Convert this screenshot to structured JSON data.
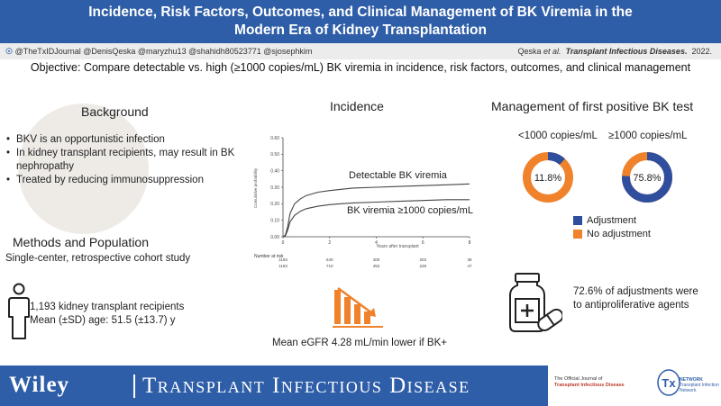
{
  "title": {
    "line1": "Incidence, Risk Factors, Outcomes, and Clinical Management of BK Viremia in the",
    "line2": "Modern Era of Kidney Transplantation"
  },
  "social": {
    "handles": "@TheTxIDJournal @DenisQeska @maryzhu13 @shahidh80523771 @sjosephkim",
    "citation_authors": "Qeska ",
    "citation_etal": "et al.",
    "citation_journal": "Transplant Infectious Diseases.",
    "citation_year": "2022."
  },
  "objective": "Objective: Compare detectable vs. high (≥1000 copies/mL) BK viremia in incidence, risk factors, outcomes, and clinical management",
  "background": {
    "heading": "Background",
    "items": [
      "BKV is an opportunistic infection",
      "In kidney transplant recipients, may result in BK nephropathy",
      "Treated by reducing immunosuppression"
    ]
  },
  "methods": {
    "heading": "Methods and Population",
    "description": "Single-center, retrospective cohort study",
    "stat1": "1,193 kidney transplant recipients",
    "stat2": "Mean (±SD) age:  51.5 (±13.7) y",
    "icon": "person-icon"
  },
  "incidence": {
    "heading": "Incidence",
    "egfr_text": "Mean eGFR 4.28 mL/min lower if BK+",
    "egfr_icon": "declining-bar-chart-icon"
  },
  "chart_data": {
    "type": "line",
    "title": "",
    "xlabel": "Years after transplant",
    "ylabel": "Cumulative probability",
    "xlim": [
      0,
      8
    ],
    "ylim": [
      0,
      0.6
    ],
    "x_ticks": [
      "0",
      "2",
      "4",
      "6",
      "8"
    ],
    "y_ticks": [
      "0.00",
      "0.10",
      "0.20",
      "0.30",
      "0.40",
      "0.50",
      "0.60"
    ],
    "series": [
      {
        "name": "Detectable BK viremia",
        "color": "#444444",
        "x": [
          0,
          0.1,
          0.2,
          0.3,
          0.5,
          0.75,
          1,
          1.5,
          2,
          3,
          4,
          5,
          6,
          7,
          8
        ],
        "y": [
          0,
          0.01,
          0.06,
          0.14,
          0.2,
          0.23,
          0.25,
          0.27,
          0.28,
          0.295,
          0.3,
          0.305,
          0.31,
          0.315,
          0.32
        ]
      },
      {
        "name": "BK viremia ≥1000 copies/mL",
        "color": "#444444",
        "x": [
          0,
          0.1,
          0.2,
          0.3,
          0.5,
          0.75,
          1,
          1.5,
          2,
          3,
          4,
          5,
          6,
          7,
          8
        ],
        "y": [
          0,
          0.005,
          0.04,
          0.09,
          0.13,
          0.155,
          0.17,
          0.185,
          0.195,
          0.205,
          0.21,
          0.215,
          0.22,
          0.225,
          0.225
        ]
      }
    ],
    "number_at_risk": {
      "label": "Number at risk",
      "rows": [
        [
          "1193",
          "640",
          "400",
          "203",
          "38"
        ],
        [
          "1193",
          "710",
          "452",
          "228",
          "47"
        ]
      ]
    }
  },
  "management": {
    "heading": "Management of first positive BK test",
    "colors": {
      "adjustment": "#2f4f9e",
      "no_adjustment": "#f0822c"
    },
    "donuts": [
      {
        "label": "<1000 copies/mL",
        "adjustment_pct": 11.8,
        "center_text": "11.8%"
      },
      {
        "label": "≥1000 copies/mL",
        "adjustment_pct": 75.8,
        "center_text": "75.8%"
      }
    ],
    "legend": {
      "adjustment": "Adjustment",
      "no_adjustment": "No adjustment"
    },
    "adjustments_line1": "72.6% of adjustments were",
    "adjustments_line2": "to antiproliferative agents",
    "icon": "medication-icon"
  },
  "footer": {
    "publisher": "Wiley",
    "journal": "Transplant Infectious Disease",
    "official_journal_line1": "The Official Journal of",
    "official_journal_line2": "Transplant Infectious Disease",
    "network_logo_text": "Tx",
    "network_label": "NETWORK",
    "network_sub": "Transplant Infection Network"
  }
}
